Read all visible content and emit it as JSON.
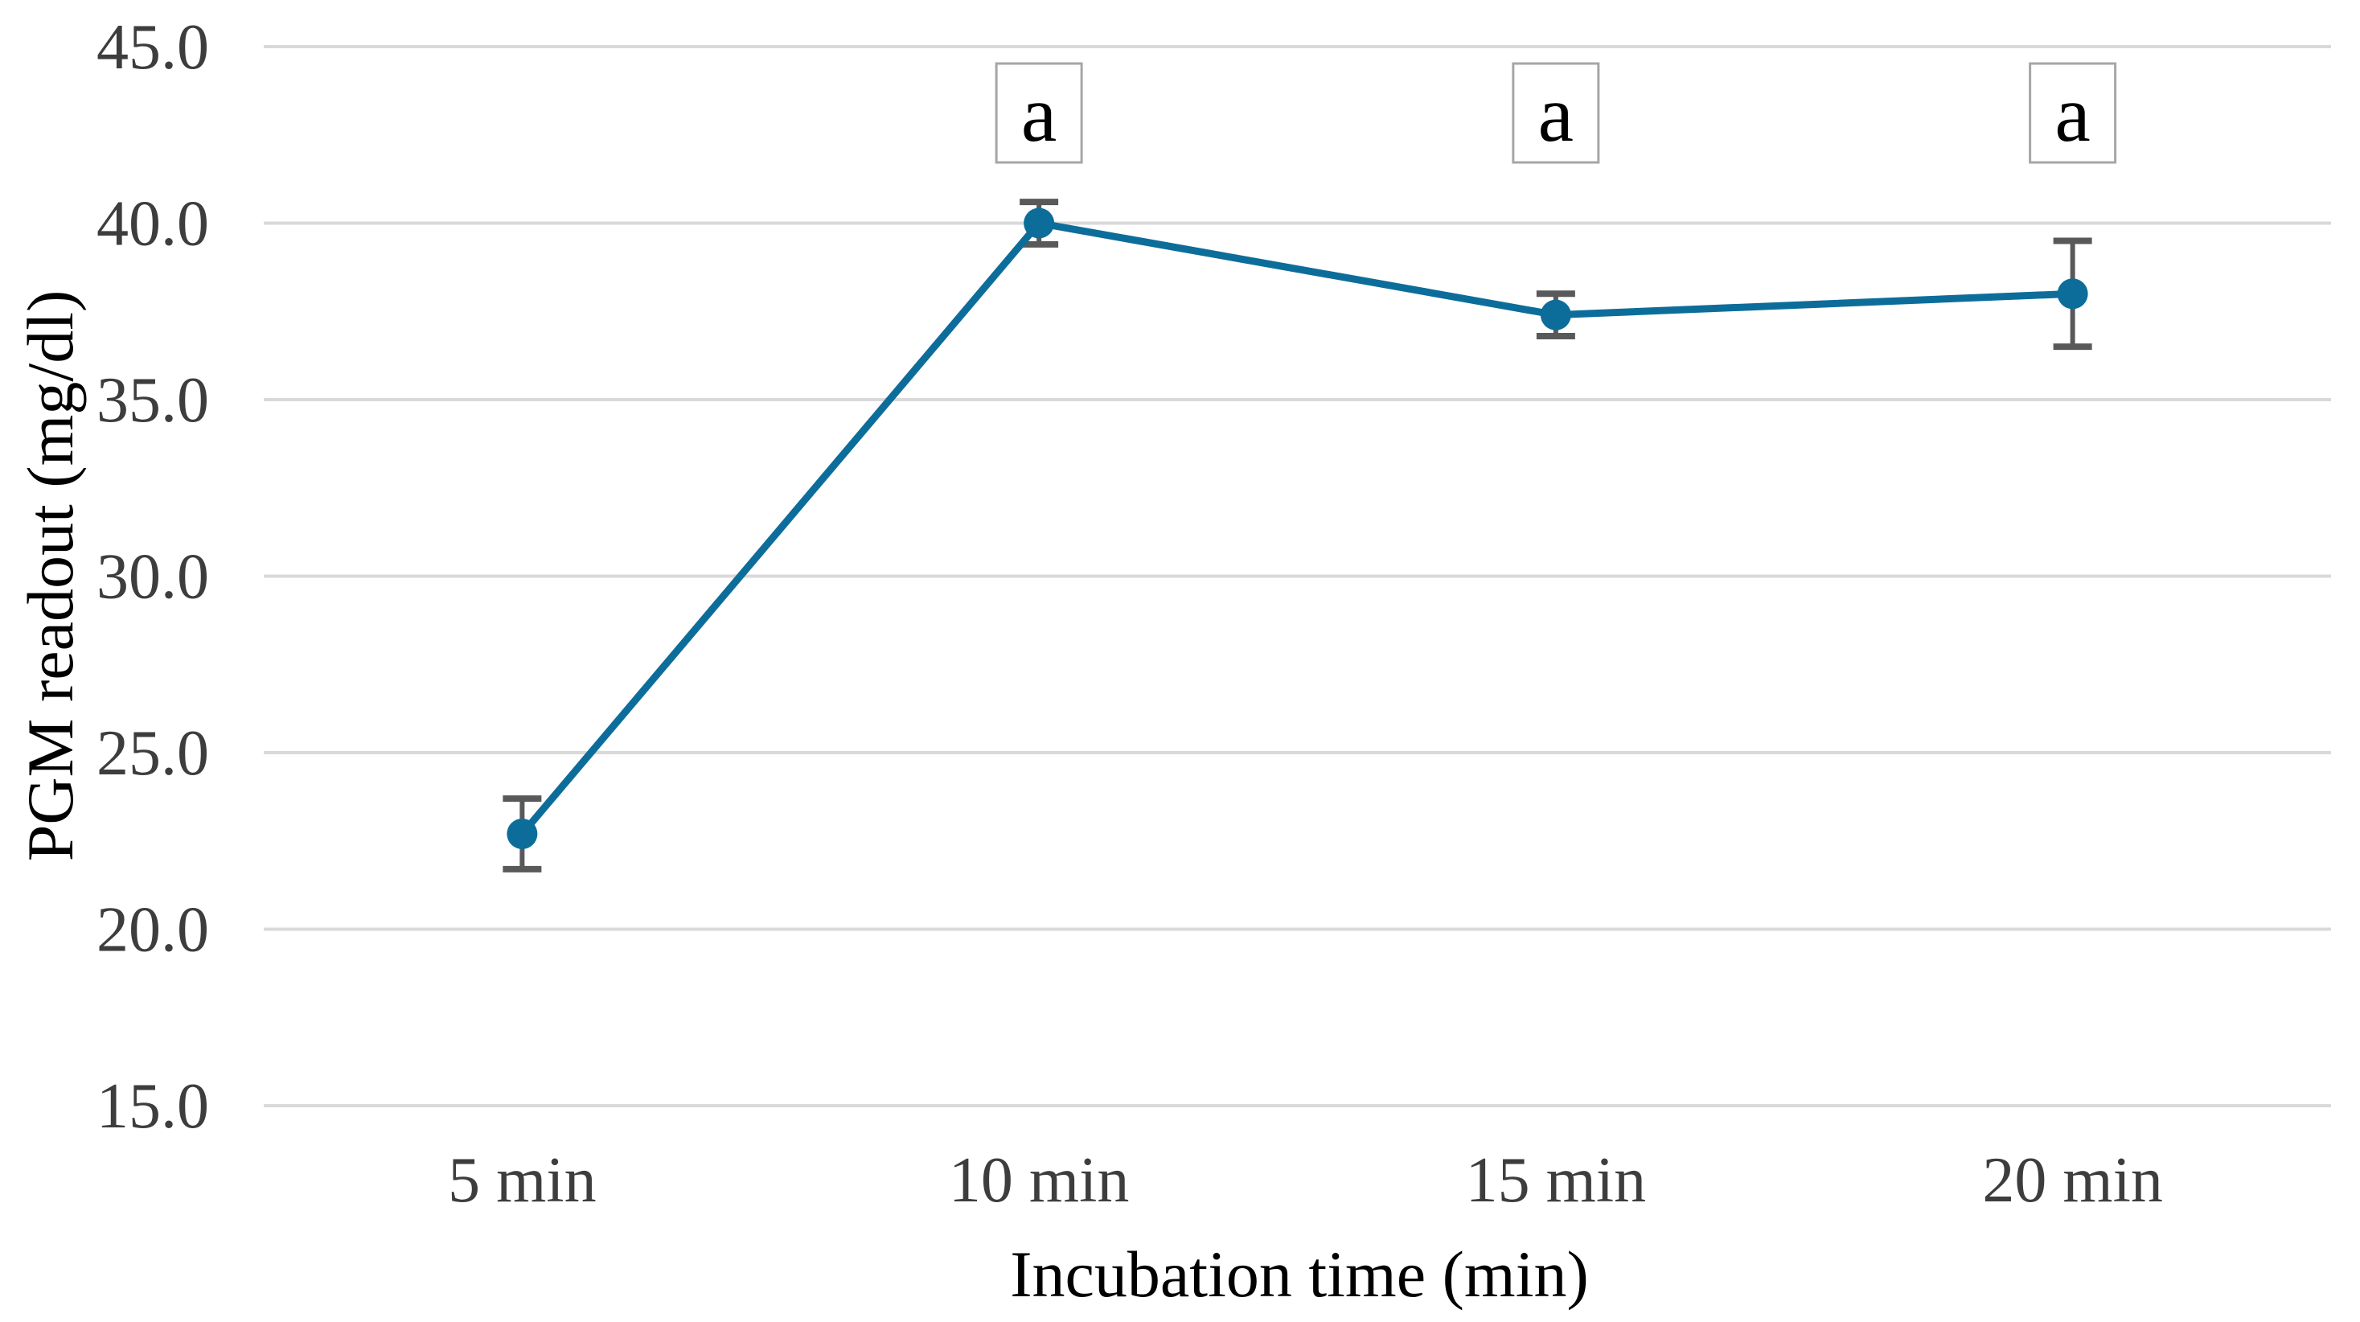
{
  "figure": {
    "background": "#ffffff"
  },
  "chart_data": {
    "type": "line",
    "title": "",
    "categories": [
      "5 min",
      "10 min",
      "15 min",
      "20 min"
    ],
    "series": [
      {
        "name": "PGM readout",
        "values": [
          22.7,
          40.0,
          37.4,
          38.0
        ],
        "error_bars": [
          1.0,
          0.6,
          0.6,
          1.5
        ]
      }
    ],
    "annotations": [
      {
        "label": "a",
        "category": "10 min",
        "category_index": 1
      },
      {
        "label": "a",
        "category": "15 min",
        "category_index": 2
      },
      {
        "label": "a",
        "category": "20 min",
        "category_index": 3
      }
    ],
    "xlabel": "Incubation time (min)",
    "ylabel": "PGM readout (mg/dl)",
    "ylim": [
      15.0,
      45.0
    ],
    "ytick_step": 5.0,
    "ytick_labels": [
      "15.0",
      "20.0",
      "25.0",
      "30.0",
      "35.0",
      "40.0",
      "45.0"
    ],
    "grid": true,
    "legend": false,
    "marker": "circle",
    "colors": {
      "series": "#0d6d9a",
      "error_bar": "#595959",
      "gridline": "#d9d9d9",
      "tick_text": "#3d3d3d",
      "axis_title_text": "#3d3d3d",
      "annotation_border": "#a6a6a6",
      "annotation_fill": "#ffffff",
      "annotation_text": "#000000",
      "background": "#ffffff"
    }
  }
}
